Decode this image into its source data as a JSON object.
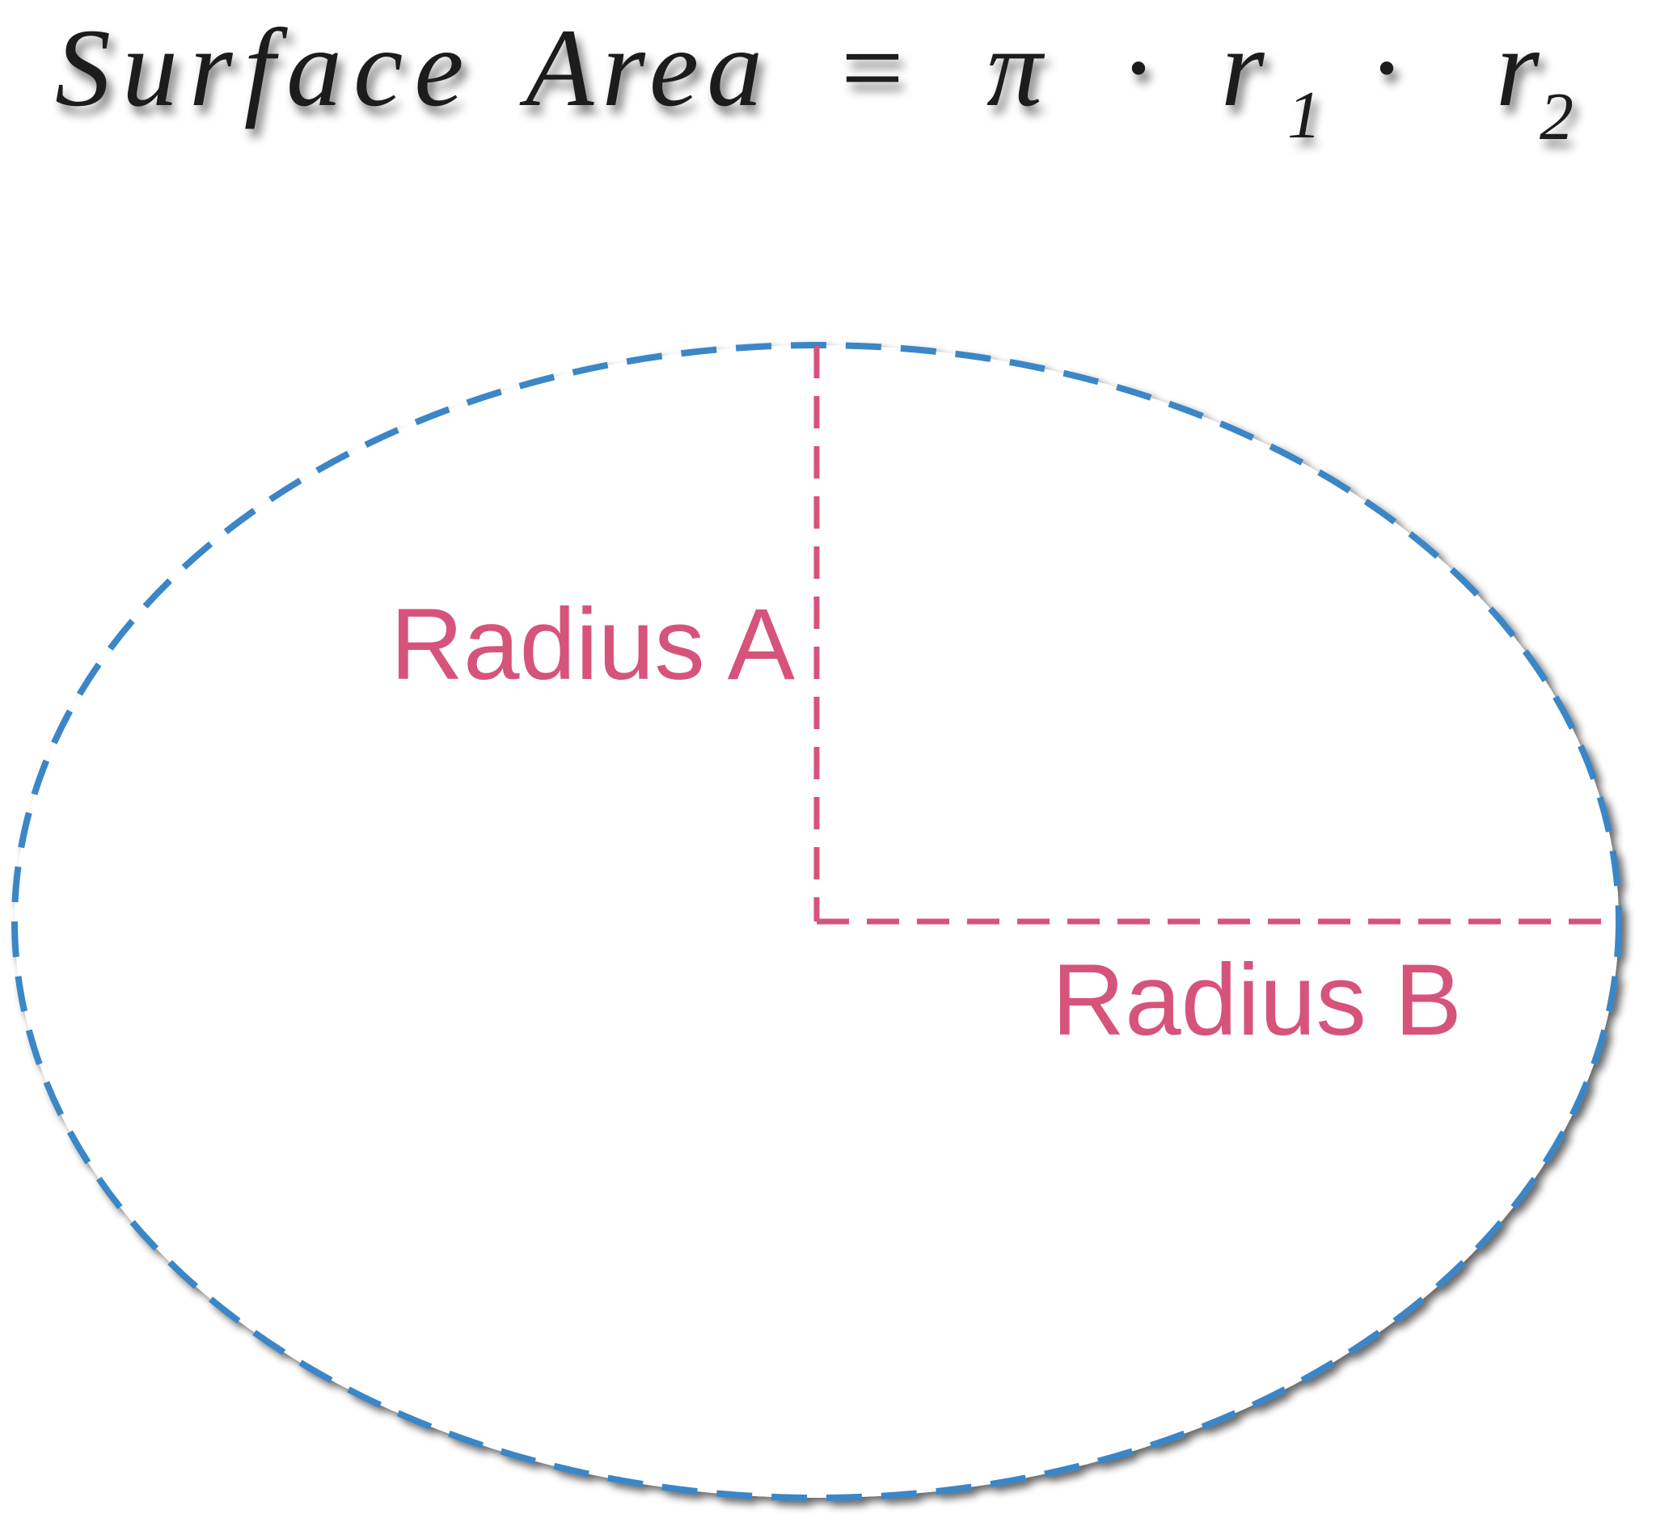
{
  "formula": {
    "lhs_word1": "Surface",
    "lhs_word2": "Area",
    "equals": "=",
    "pi": "π",
    "dot1": "·",
    "r": "r",
    "sub1": "1",
    "dot2": "·",
    "r_second": "r",
    "sub2": "2"
  },
  "labels": {
    "radius_a": "Radius A",
    "radius_b": "Radius B"
  },
  "colors": {
    "ellipse_stroke": "#3b86c6",
    "radius_stroke": "#d6537a",
    "label_color": "#d6537a",
    "text_color": "#1a1a1a"
  }
}
